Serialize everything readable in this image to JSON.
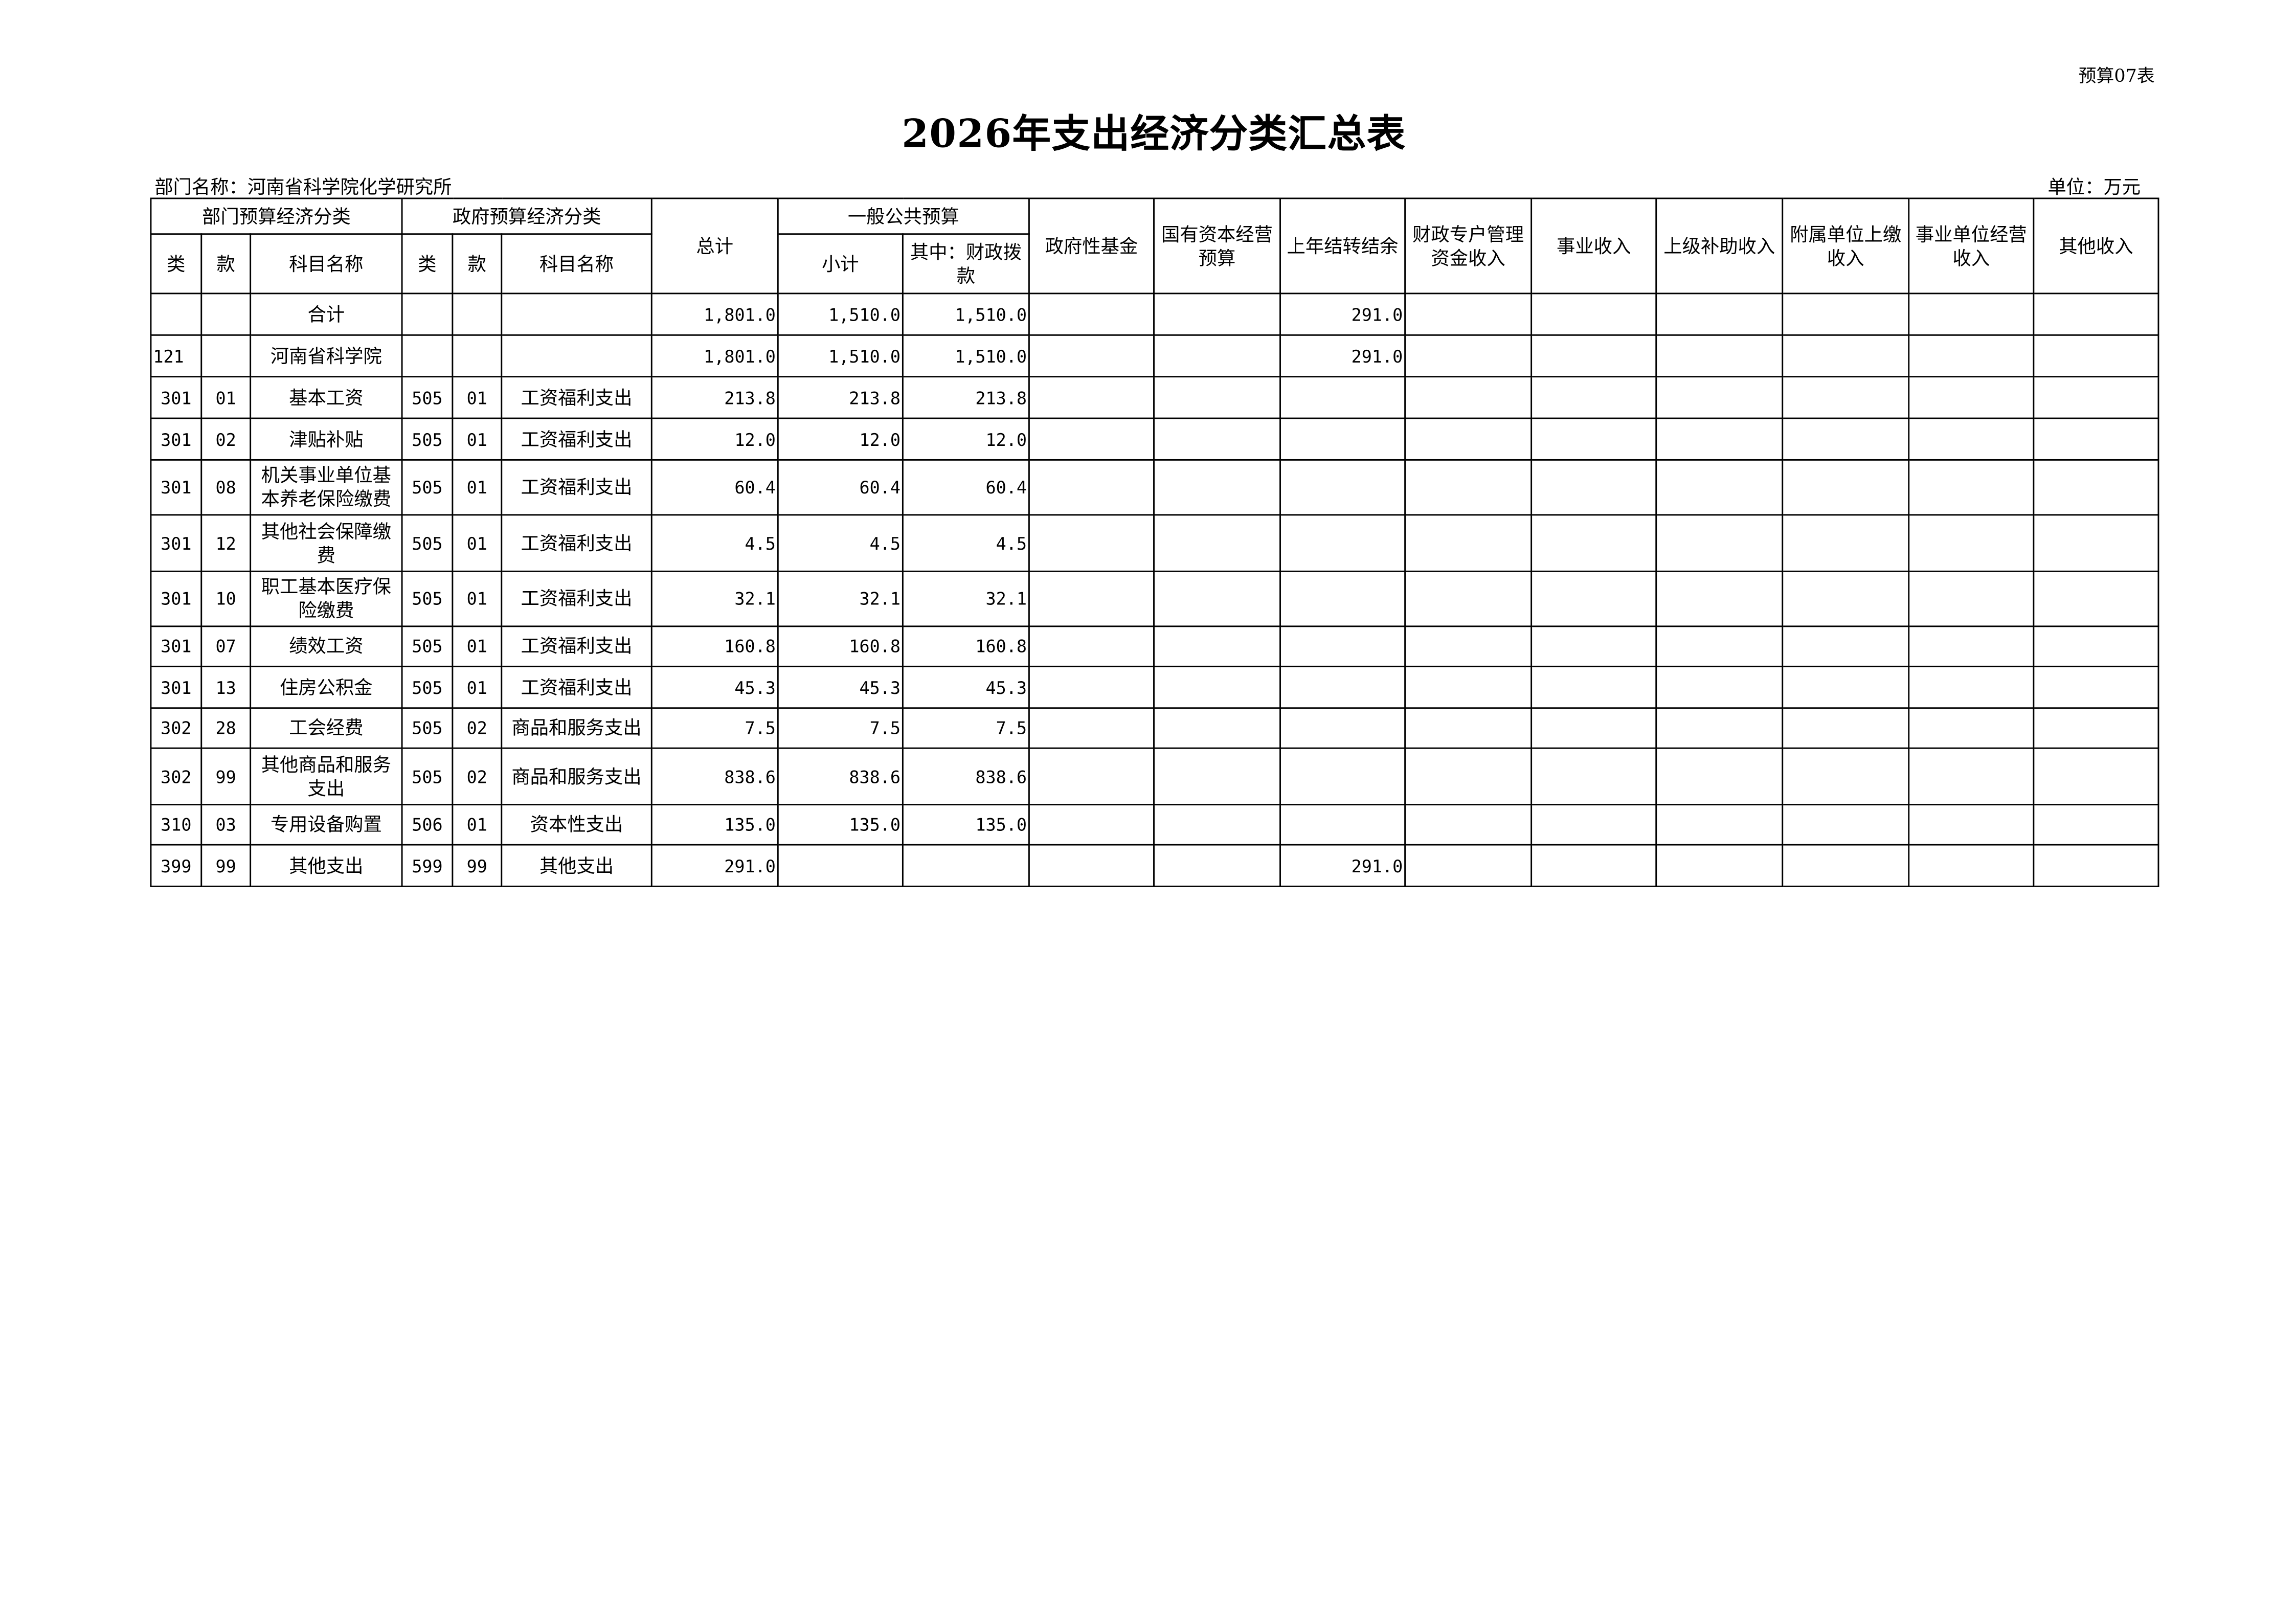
{
  "form_no": "预算07表",
  "title": "2026年支出经济分类汇总表",
  "department": "部门名称：河南省科学院化学研究所",
  "unit": "单位：万元",
  "header": {
    "dept_group": "部门预算经济分类",
    "gov_group": "政府预算经济分类",
    "lei": "类",
    "kuan": "款",
    "name": "科目名称",
    "total": "总计",
    "general_group": "一般公共预算",
    "subtotal": "小计",
    "fiscal": "其中：财政拨款",
    "cols": [
      "政府性基金",
      "国有资本经营预算",
      "上年结转结余",
      "财政专户管理资金收入",
      "事业收入",
      "上级补助收入",
      "附属单位上缴收入",
      "事业单位经营收入",
      "其他收入"
    ]
  },
  "rows": [
    {
      "c": [
        "",
        "",
        "合计",
        "",
        "",
        "",
        "1,801.0",
        "1,510.0",
        "1,510.0",
        "",
        "",
        "291.0",
        "",
        "",
        "",
        "",
        "",
        ""
      ]
    },
    {
      "c": [
        "121",
        "",
        "河南省科学院",
        "",
        "",
        "",
        "1,801.0",
        "1,510.0",
        "1,510.0",
        "",
        "",
        "291.0",
        "",
        "",
        "",
        "",
        "",
        ""
      ]
    },
    {
      "c": [
        "301",
        "01",
        "基本工资",
        "505",
        "01",
        "工资福利支出",
        "213.8",
        "213.8",
        "213.8",
        "",
        "",
        "",
        "",
        "",
        "",
        "",
        "",
        ""
      ]
    },
    {
      "c": [
        "301",
        "02",
        "津贴补贴",
        "505",
        "01",
        "工资福利支出",
        "12.0",
        "12.0",
        "12.0",
        "",
        "",
        "",
        "",
        "",
        "",
        "",
        "",
        ""
      ]
    },
    {
      "c": [
        "301",
        "08",
        "机关事业单位基本养老保险缴费",
        "505",
        "01",
        "工资福利支出",
        "60.4",
        "60.4",
        "60.4",
        "",
        "",
        "",
        "",
        "",
        "",
        "",
        "",
        ""
      ]
    },
    {
      "c": [
        "301",
        "12",
        "其他社会保障缴费",
        "505",
        "01",
        "工资福利支出",
        "4.5",
        "4.5",
        "4.5",
        "",
        "",
        "",
        "",
        "",
        "",
        "",
        "",
        ""
      ]
    },
    {
      "c": [
        "301",
        "10",
        "职工基本医疗保险缴费",
        "505",
        "01",
        "工资福利支出",
        "32.1",
        "32.1",
        "32.1",
        "",
        "",
        "",
        "",
        "",
        "",
        "",
        "",
        ""
      ]
    },
    {
      "c": [
        "301",
        "07",
        "绩效工资",
        "505",
        "01",
        "工资福利支出",
        "160.8",
        "160.8",
        "160.8",
        "",
        "",
        "",
        "",
        "",
        "",
        "",
        "",
        ""
      ]
    },
    {
      "c": [
        "301",
        "13",
        "住房公积金",
        "505",
        "01",
        "工资福利支出",
        "45.3",
        "45.3",
        "45.3",
        "",
        "",
        "",
        "",
        "",
        "",
        "",
        "",
        ""
      ]
    },
    {
      "c": [
        "302",
        "28",
        "工会经费",
        "505",
        "02",
        "商品和服务支出",
        "7.5",
        "7.5",
        "7.5",
        "",
        "",
        "",
        "",
        "",
        "",
        "",
        "",
        ""
      ]
    },
    {
      "c": [
        "302",
        "99",
        "其他商品和服务支出",
        "505",
        "02",
        "商品和服务支出",
        "838.6",
        "838.6",
        "838.6",
        "",
        "",
        "",
        "",
        "",
        "",
        "",
        "",
        ""
      ]
    },
    {
      "c": [
        "310",
        "03",
        "专用设备购置",
        "506",
        "01",
        "资本性支出",
        "135.0",
        "135.0",
        "135.0",
        "",
        "",
        "",
        "",
        "",
        "",
        "",
        "",
        ""
      ]
    },
    {
      "c": [
        "399",
        "99",
        "其他支出",
        "599",
        "99",
        "其他支出",
        "291.0",
        "",
        "",
        "",
        "",
        "291.0",
        "",
        "",
        "",
        "",
        "",
        ""
      ]
    }
  ]
}
